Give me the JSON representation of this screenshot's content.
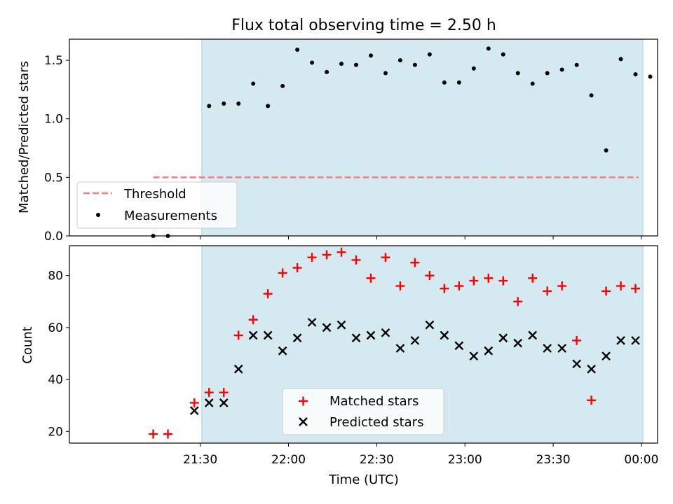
{
  "chart_data": [
    {
      "type": "scatter",
      "title": "Flux total observing time = 2.50 h",
      "ylabel": "Matched/Predicted stars",
      "ylim": [
        0,
        1.68
      ],
      "yticks": [
        0.0,
        0.5,
        1.0,
        1.5
      ],
      "ytick_labels": [
        "0.0",
        "0.5",
        "1.0",
        "1.5"
      ],
      "x_unit": "minutes after 21:00 UTC",
      "shaded_span_x": [
        30.5,
        180.5
      ],
      "shaded_color": "#d4eaf0",
      "threshold": {
        "name": "Threshold",
        "y": 0.5,
        "x_range": [
          14,
          179
        ],
        "color": "#f08080"
      },
      "legend_position": "lower-left",
      "series": [
        {
          "name": "Measurements",
          "color": "#000000",
          "x": [
            14,
            19,
            33,
            38,
            43,
            48,
            53,
            58,
            63,
            68,
            73,
            78,
            83,
            88,
            93,
            98,
            103,
            108,
            113,
            118,
            123,
            128,
            133,
            138,
            143,
            148,
            153,
            158,
            163,
            168,
            173,
            178,
            183
          ],
          "y": [
            0.0,
            0.0,
            1.11,
            1.13,
            1.13,
            1.3,
            1.11,
            1.28,
            1.59,
            1.48,
            1.4,
            1.47,
            1.46,
            1.54,
            1.39,
            1.5,
            1.46,
            1.55,
            1.31,
            1.31,
            1.43,
            1.6,
            1.55,
            1.39,
            1.3,
            1.39,
            1.42,
            1.46,
            1.2,
            0.73,
            1.51,
            1.38,
            1.36
          ]
        }
      ]
    },
    {
      "type": "scatter",
      "xlabel": "Time (UTC)",
      "ylabel": "Count",
      "ylim": [
        15.5,
        91.5
      ],
      "yticks": [
        20,
        40,
        60,
        80
      ],
      "ytick_labels": [
        "20",
        "40",
        "60",
        "80"
      ],
      "xlim_minutes": [
        -14.5,
        185.5
      ],
      "xticks_minutes": [
        30,
        60,
        90,
        120,
        150,
        180
      ],
      "xtick_labels": [
        "21:30",
        "22:00",
        "22:30",
        "23:00",
        "23:30",
        "00:00"
      ],
      "shaded_span_x": [
        30.5,
        180.5
      ],
      "legend_position": "lower-center",
      "series": [
        {
          "name": "Matched stars",
          "color": "#ff0000",
          "marker": "+",
          "x": [
            14,
            19,
            28,
            33,
            38,
            43,
            48,
            53,
            58,
            63,
            68,
            73,
            78,
            83,
            88,
            93,
            98,
            103,
            108,
            113,
            118,
            123,
            128,
            133,
            138,
            143,
            148,
            153,
            158,
            163,
            168,
            173,
            178
          ],
          "y": [
            19,
            19,
            31,
            35,
            35,
            57,
            63,
            73,
            81,
            83,
            87,
            88,
            89,
            86,
            79,
            87,
            76,
            85,
            80,
            75,
            76,
            78,
            79,
            78,
            70,
            79,
            74,
            76,
            55,
            32,
            74,
            76,
            75
          ]
        },
        {
          "name": "Predicted stars",
          "color": "#000000",
          "marker": "x",
          "x": [
            28,
            33,
            38,
            43,
            48,
            53,
            58,
            63,
            68,
            73,
            78,
            83,
            88,
            93,
            98,
            103,
            108,
            113,
            118,
            123,
            128,
            133,
            138,
            143,
            148,
            153,
            158,
            163,
            168,
            173,
            178
          ],
          "y": [
            28,
            31,
            31,
            44,
            57,
            57,
            51,
            56,
            62,
            60,
            61,
            56,
            57,
            58,
            52,
            55,
            61,
            57,
            53,
            49,
            51,
            56,
            54,
            57,
            52,
            52,
            46,
            44,
            49,
            55,
            55
          ]
        }
      ]
    }
  ]
}
